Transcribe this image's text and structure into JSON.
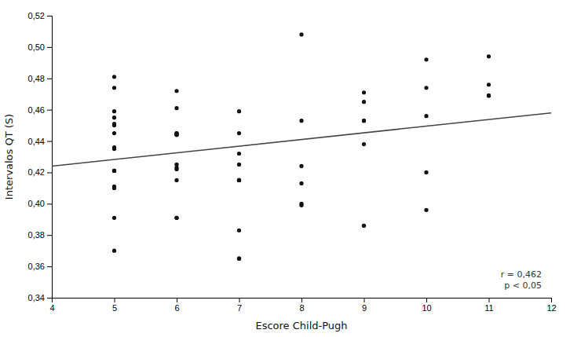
{
  "chart_data": {
    "type": "scatter",
    "xlabel": "Escore Child-Pugh",
    "ylabel": "Intervalos QT (S)",
    "annotation": "r = 0,462\np < 0,05",
    "grid": false,
    "xlim": [
      4,
      12
    ],
    "ylim": [
      0.34,
      0.52
    ],
    "xticks": [
      4,
      5,
      6,
      7,
      8,
      9,
      10,
      11,
      12
    ],
    "yticks": [
      {
        "value": 0.34,
        "label": "0,34"
      },
      {
        "value": 0.36,
        "label": "0,36"
      },
      {
        "value": 0.38,
        "label": "0,38"
      },
      {
        "value": 0.4,
        "label": "0,40"
      },
      {
        "value": 0.42,
        "label": "0,42"
      },
      {
        "value": 0.44,
        "label": "0,44"
      },
      {
        "value": 0.46,
        "label": "0,46"
      },
      {
        "value": 0.48,
        "label": "0,48"
      },
      {
        "value": 0.5,
        "label": "0,50"
      },
      {
        "value": 0.52,
        "label": "0,52"
      }
    ],
    "series": [
      {
        "type": "scatter",
        "color": "#111111",
        "x": [
          5,
          5,
          5,
          5,
          5,
          5,
          5,
          5,
          5,
          5,
          5,
          5,
          5,
          5,
          5,
          5,
          6,
          6,
          6,
          6,
          6,
          6,
          6,
          6,
          6,
          6,
          6,
          6,
          6,
          7,
          7,
          7,
          7,
          7,
          7,
          7,
          7,
          7,
          7,
          8,
          8,
          8,
          8,
          8,
          8,
          9,
          9,
          9,
          9,
          9,
          9,
          9,
          10,
          10,
          10,
          10,
          10,
          11,
          11,
          11,
          11,
          11
        ],
        "values": [
          0.481,
          0.474,
          0.459,
          0.455,
          0.451,
          0.45,
          0.445,
          0.436,
          0.435,
          0.421,
          0.421,
          0.421,
          0.411,
          0.41,
          0.391,
          0.37,
          0.472,
          0.461,
          0.445,
          0.445,
          0.444,
          0.444,
          0.444,
          0.425,
          0.423,
          0.422,
          0.415,
          0.391,
          0.391,
          0.459,
          0.445,
          0.432,
          0.425,
          0.415,
          0.415,
          0.415,
          0.383,
          0.365,
          0.365,
          0.508,
          0.453,
          0.424,
          0.413,
          0.4,
          0.399,
          0.471,
          0.465,
          0.453,
          0.453,
          0.438,
          0.386,
          0.386,
          0.492,
          0.474,
          0.456,
          0.42,
          0.396,
          0.494,
          0.476,
          0.469,
          0.469,
          0.469
        ]
      },
      {
        "type": "line",
        "color": "#444444",
        "x": [
          4,
          12
        ],
        "values": [
          0.424,
          0.458
        ]
      }
    ]
  }
}
